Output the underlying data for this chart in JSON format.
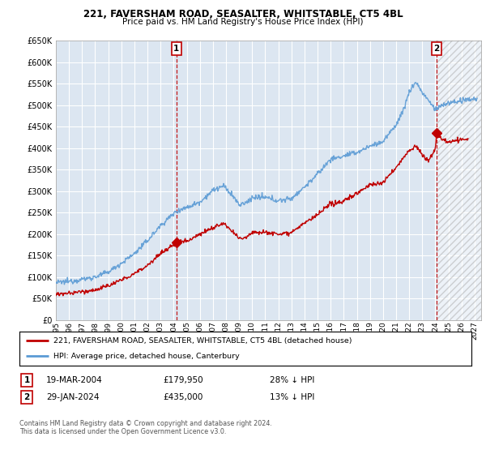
{
  "title": "221, FAVERSHAM ROAD, SEASALTER, WHITSTABLE, CT5 4BL",
  "subtitle": "Price paid vs. HM Land Registry's House Price Index (HPI)",
  "legend_line1": "221, FAVERSHAM ROAD, SEASALTER, WHITSTABLE, CT5 4BL (detached house)",
  "legend_line2": "HPI: Average price, detached house, Canterbury",
  "annotation1_label": "1",
  "annotation1_date": "19-MAR-2004",
  "annotation1_price": "£179,950",
  "annotation1_hpi": "28% ↓ HPI",
  "annotation2_label": "2",
  "annotation2_date": "29-JAN-2024",
  "annotation2_price": "£435,000",
  "annotation2_hpi": "13% ↓ HPI",
  "footnote": "Contains HM Land Registry data © Crown copyright and database right 2024.\nThis data is licensed under the Open Government Licence v3.0.",
  "ylim": [
    0,
    650000
  ],
  "yticks": [
    0,
    50000,
    100000,
    150000,
    200000,
    250000,
    300000,
    350000,
    400000,
    450000,
    500000,
    550000,
    600000,
    650000
  ],
  "xmin": 1995.0,
  "xmax": 2027.5,
  "sale1_x": 2004.21,
  "sale1_y": 179950,
  "sale2_x": 2024.08,
  "sale2_y": 435000,
  "vline1_x": 2004.21,
  "vline2_x": 2024.08,
  "hpi_color": "#5b9bd5",
  "property_color": "#c00000",
  "vline_color": "#c00000",
  "bg_color": "#ffffff",
  "plot_bg_color": "#dce6f1",
  "grid_color": "#ffffff",
  "annotation_box_color": "#c00000"
}
